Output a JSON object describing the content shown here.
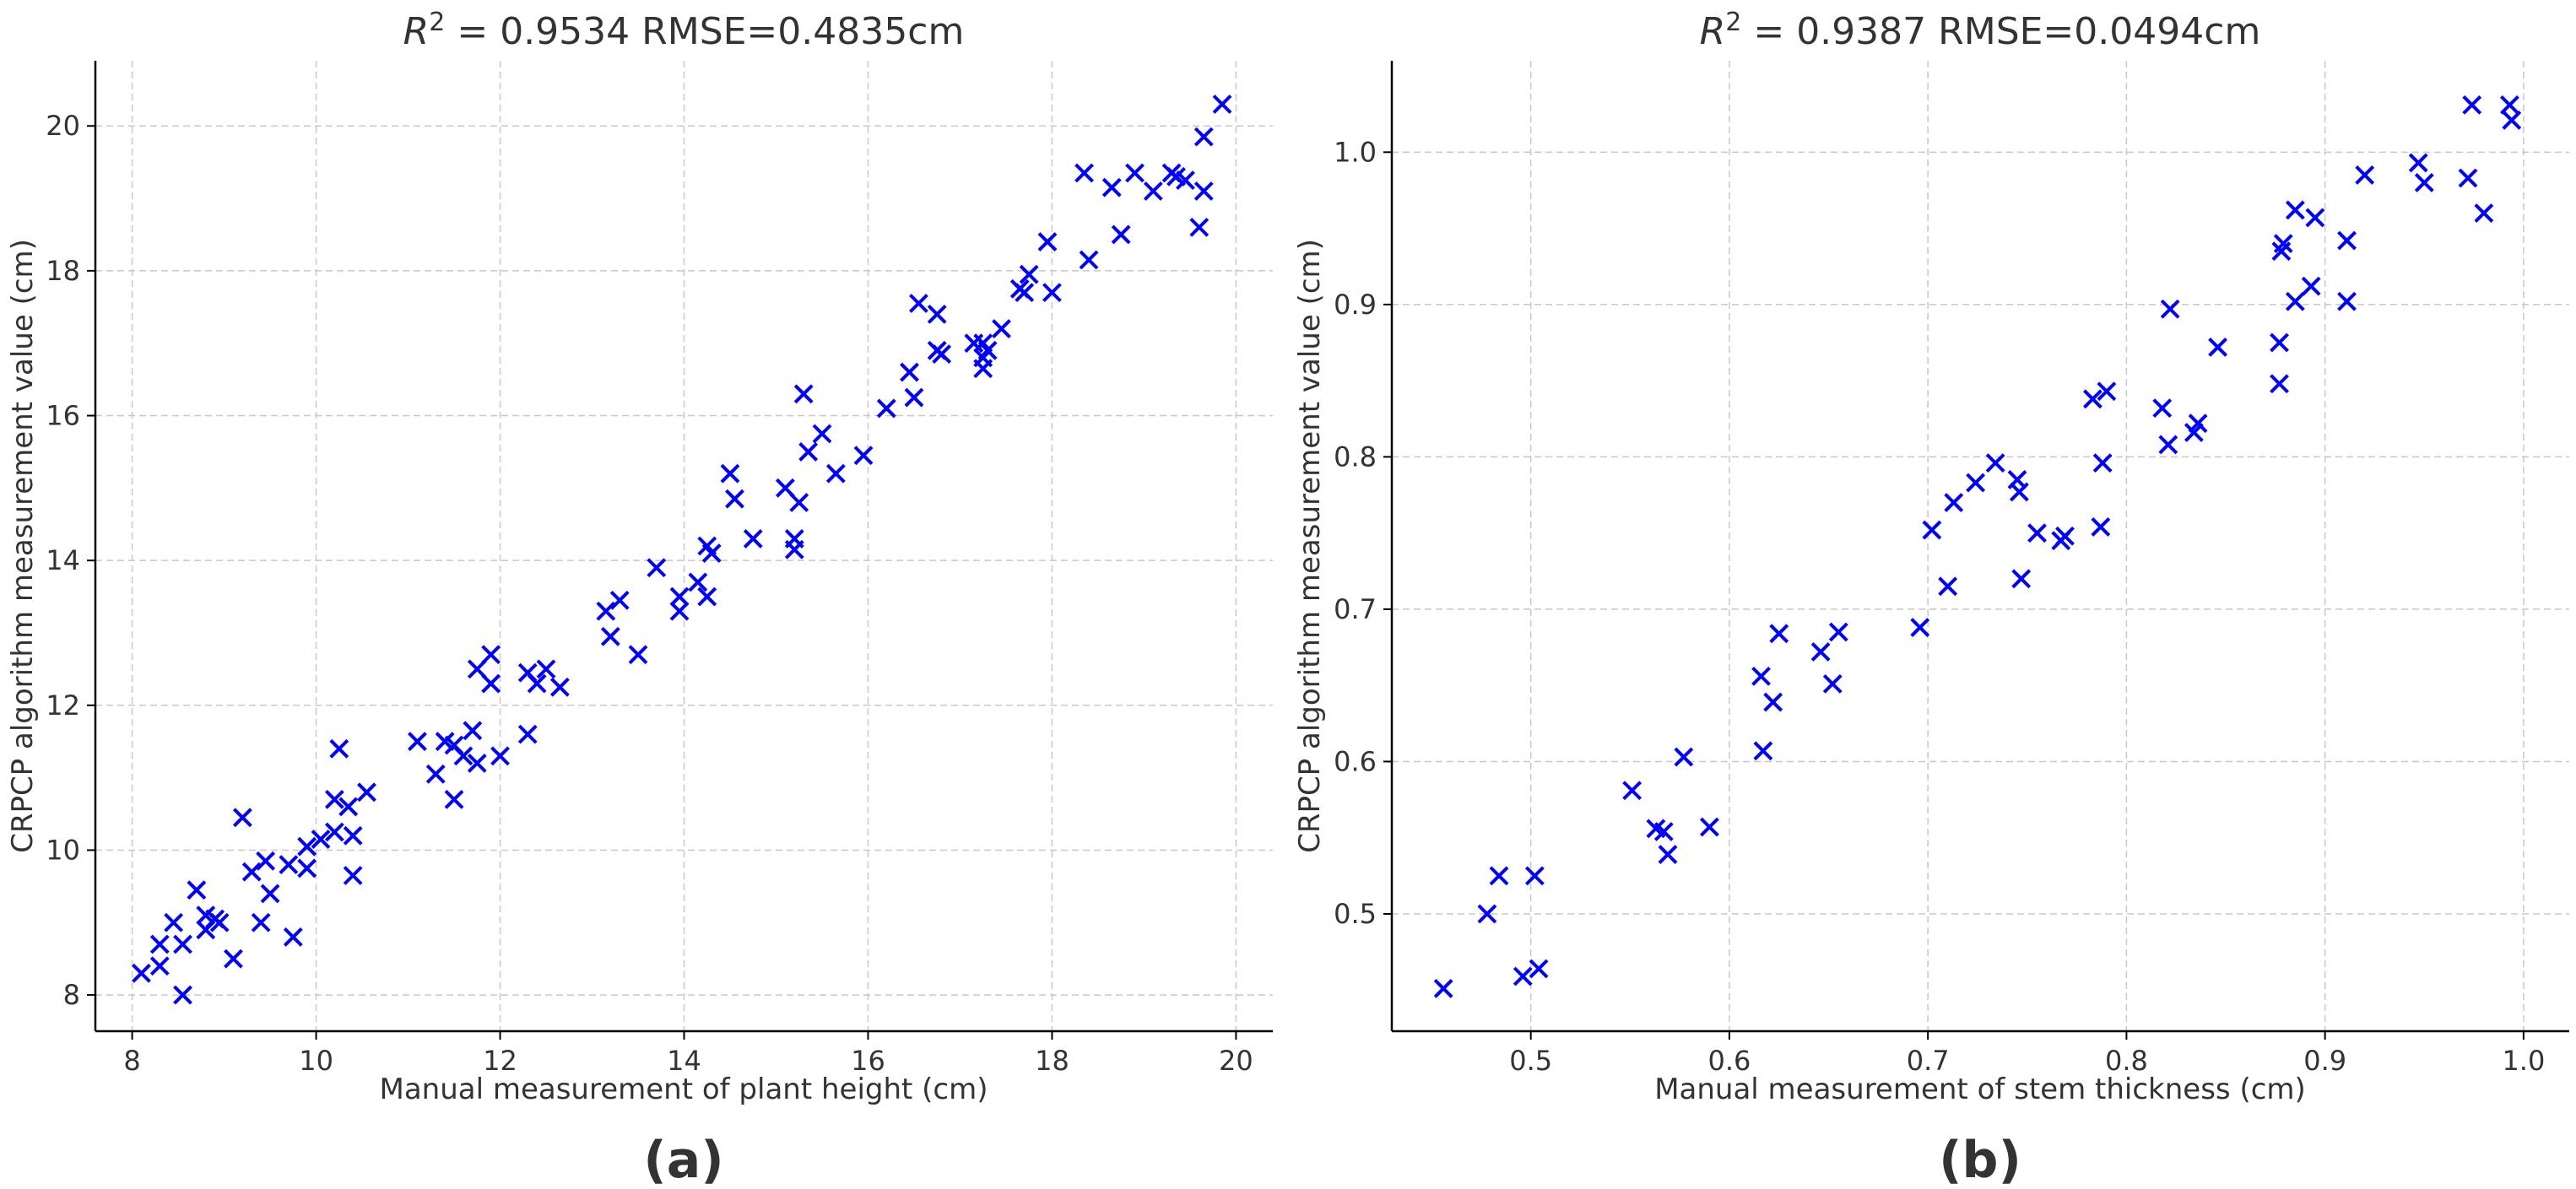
{
  "colors": {
    "marker": "#0000ff",
    "text": "#333333",
    "grid": "#c8c8c8"
  },
  "chart_data": [
    {
      "type": "scatter",
      "marker": "x",
      "title": "R² = 0.9534  RMSE=0.4835cm",
      "title_r2": "0.9534",
      "title_rmse": "RMSE=0.4835cm",
      "xlabel": "Manual measurement of plant height (cm)",
      "ylabel": "CRPCP algorithm measurement value (cm)",
      "panel_label": "(a)",
      "xlim": [
        7.6,
        20.4
      ],
      "ylim": [
        7.5,
        20.9
      ],
      "xticks": [
        8,
        10,
        12,
        14,
        16,
        18,
        20
      ],
      "yticks": [
        8,
        10,
        12,
        14,
        16,
        18,
        20
      ],
      "tick_decimals": 0,
      "grid": true,
      "points": [
        [
          8.1,
          8.3
        ],
        [
          8.3,
          8.7
        ],
        [
          8.3,
          8.4
        ],
        [
          8.45,
          9.0
        ],
        [
          8.55,
          8.7
        ],
        [
          8.55,
          8.0
        ],
        [
          8.7,
          9.45
        ],
        [
          8.8,
          9.1
        ],
        [
          8.8,
          8.9
        ],
        [
          8.9,
          9.05
        ],
        [
          8.95,
          9.0
        ],
        [
          9.1,
          8.5
        ],
        [
          9.2,
          10.45
        ],
        [
          9.3,
          9.7
        ],
        [
          9.4,
          9.0
        ],
        [
          9.45,
          9.85
        ],
        [
          9.5,
          9.4
        ],
        [
          9.7,
          9.8
        ],
        [
          9.75,
          8.8
        ],
        [
          9.9,
          9.75
        ],
        [
          9.9,
          10.05
        ],
        [
          10.05,
          10.15
        ],
        [
          10.2,
          10.25
        ],
        [
          10.2,
          10.7
        ],
        [
          10.25,
          11.4
        ],
        [
          10.35,
          10.6
        ],
        [
          10.4,
          10.2
        ],
        [
          10.4,
          9.65
        ],
        [
          10.55,
          10.8
        ],
        [
          11.1,
          11.5
        ],
        [
          11.3,
          11.05
        ],
        [
          11.4,
          11.5
        ],
        [
          11.5,
          11.45
        ],
        [
          11.5,
          10.7
        ],
        [
          11.6,
          11.3
        ],
        [
          11.7,
          11.65
        ],
        [
          11.75,
          12.5
        ],
        [
          11.75,
          11.2
        ],
        [
          11.9,
          12.7
        ],
        [
          11.9,
          12.3
        ],
        [
          12.0,
          11.3
        ],
        [
          12.3,
          11.6
        ],
        [
          12.3,
          12.45
        ],
        [
          12.4,
          12.3
        ],
        [
          12.5,
          12.5
        ],
        [
          12.65,
          12.25
        ],
        [
          13.15,
          13.3
        ],
        [
          13.2,
          12.95
        ],
        [
          13.3,
          13.45
        ],
        [
          13.5,
          12.7
        ],
        [
          13.7,
          13.9
        ],
        [
          13.95,
          13.5
        ],
        [
          13.95,
          13.3
        ],
        [
          14.15,
          13.7
        ],
        [
          14.25,
          14.2
        ],
        [
          14.25,
          13.5
        ],
        [
          14.3,
          14.1
        ],
        [
          14.5,
          15.2
        ],
        [
          14.55,
          14.85
        ],
        [
          14.75,
          14.3
        ],
        [
          15.1,
          15.0
        ],
        [
          15.2,
          14.3
        ],
        [
          15.2,
          14.15
        ],
        [
          15.25,
          14.8
        ],
        [
          15.3,
          16.3
        ],
        [
          15.35,
          15.5
        ],
        [
          15.5,
          15.75
        ],
        [
          15.65,
          15.2
        ],
        [
          15.95,
          15.45
        ],
        [
          16.2,
          16.1
        ],
        [
          16.45,
          16.6
        ],
        [
          16.5,
          16.25
        ],
        [
          16.55,
          17.55
        ],
        [
          16.75,
          17.4
        ],
        [
          16.75,
          16.9
        ],
        [
          16.8,
          16.85
        ],
        [
          17.15,
          17.0
        ],
        [
          17.25,
          17.0
        ],
        [
          17.25,
          16.8
        ],
        [
          17.25,
          16.65
        ],
        [
          17.3,
          16.9
        ],
        [
          17.45,
          17.2
        ],
        [
          17.65,
          17.75
        ],
        [
          17.7,
          17.7
        ],
        [
          17.75,
          17.95
        ],
        [
          17.95,
          18.4
        ],
        [
          18.0,
          17.7
        ],
        [
          18.35,
          19.35
        ],
        [
          18.4,
          18.15
        ],
        [
          18.65,
          19.15
        ],
        [
          18.75,
          18.5
        ],
        [
          18.9,
          19.35
        ],
        [
          19.1,
          19.1
        ],
        [
          19.3,
          19.35
        ],
        [
          19.35,
          19.3
        ],
        [
          19.45,
          19.25
        ],
        [
          19.6,
          18.6
        ],
        [
          19.65,
          19.85
        ],
        [
          19.65,
          19.1
        ],
        [
          19.85,
          20.3
        ]
      ]
    },
    {
      "type": "scatter",
      "marker": "x",
      "title": "R² = 0.9387  RMSE=0.0494cm",
      "title_r2": "0.9387",
      "title_rmse": "RMSE=0.0494cm",
      "xlabel": "Manual measurement of stem thickness (cm)",
      "ylabel": "CRPCP algorithm measurement value (cm)",
      "panel_label": "(b)",
      "xlim": [
        0.43,
        1.023
      ],
      "ylim": [
        0.423,
        1.06
      ],
      "xticks": [
        0.5,
        0.6,
        0.7,
        0.8,
        0.9,
        1.0
      ],
      "yticks": [
        0.5,
        0.6,
        0.7,
        0.8,
        0.9,
        1.0
      ],
      "tick_decimals": 1,
      "grid": true,
      "points": [
        [
          0.456,
          0.451
        ],
        [
          0.478,
          0.5
        ],
        [
          0.484,
          0.525
        ],
        [
          0.496,
          0.459
        ],
        [
          0.502,
          0.525
        ],
        [
          0.504,
          0.464
        ],
        [
          0.551,
          0.581
        ],
        [
          0.563,
          0.556
        ],
        [
          0.567,
          0.554
        ],
        [
          0.569,
          0.539
        ],
        [
          0.577,
          0.603
        ],
        [
          0.59,
          0.557
        ],
        [
          0.616,
          0.656
        ],
        [
          0.617,
          0.607
        ],
        [
          0.622,
          0.639
        ],
        [
          0.625,
          0.684
        ],
        [
          0.646,
          0.672
        ],
        [
          0.652,
          0.651
        ],
        [
          0.655,
          0.685
        ],
        [
          0.696,
          0.688
        ],
        [
          0.702,
          0.752
        ],
        [
          0.71,
          0.715
        ],
        [
          0.713,
          0.77
        ],
        [
          0.724,
          0.783
        ],
        [
          0.734,
          0.796
        ],
        [
          0.745,
          0.785
        ],
        [
          0.746,
          0.777
        ],
        [
          0.747,
          0.72
        ],
        [
          0.755,
          0.75
        ],
        [
          0.767,
          0.745
        ],
        [
          0.769,
          0.748
        ],
        [
          0.783,
          0.838
        ],
        [
          0.787,
          0.754
        ],
        [
          0.788,
          0.796
        ],
        [
          0.79,
          0.843
        ],
        [
          0.818,
          0.832
        ],
        [
          0.821,
          0.808
        ],
        [
          0.822,
          0.897
        ],
        [
          0.834,
          0.816
        ],
        [
          0.836,
          0.822
        ],
        [
          0.846,
          0.872
        ],
        [
          0.877,
          0.875
        ],
        [
          0.877,
          0.848
        ],
        [
          0.878,
          0.935
        ],
        [
          0.879,
          0.94
        ],
        [
          0.885,
          0.902
        ],
        [
          0.885,
          0.962
        ],
        [
          0.893,
          0.912
        ],
        [
          0.895,
          0.957
        ],
        [
          0.911,
          0.942
        ],
        [
          0.911,
          0.902
        ],
        [
          0.92,
          0.985
        ],
        [
          0.947,
          0.993
        ],
        [
          0.95,
          0.98
        ],
        [
          0.972,
          0.983
        ],
        [
          0.974,
          1.031
        ],
        [
          0.98,
          0.96
        ],
        [
          0.993,
          1.031
        ],
        [
          0.994,
          1.021
        ]
      ]
    }
  ]
}
